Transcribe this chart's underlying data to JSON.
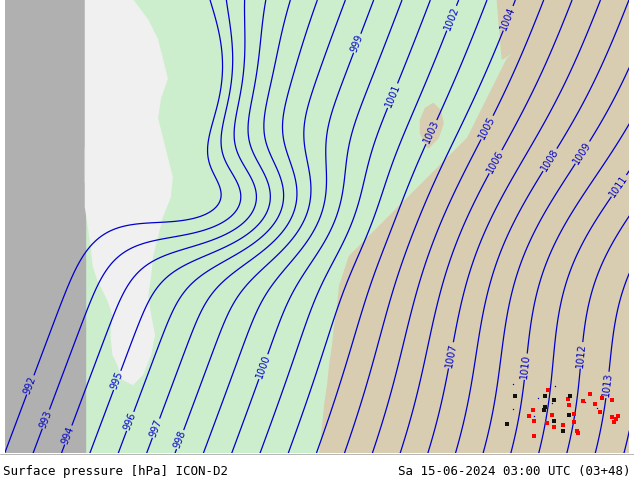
{
  "title_left": "Surface pressure [hPa] ICON-D2",
  "title_right": "Sa 15-06-2024 03:00 UTC (03+48)",
  "footer_text_color": "#000000",
  "contour_color": "#0000cc",
  "contour_linewidth": 0.9,
  "label_fontsize": 7,
  "footer_fontsize": 9,
  "figwidth": 6.34,
  "figheight": 4.9,
  "dpi": 100,
  "gray_strip_color": "#b0b0b0",
  "sea_color": "#cceecc",
  "uk_land_color": "#f0f0f0",
  "continent_land_color": "#d8cdb0",
  "red_dot_color": "#ff0000"
}
